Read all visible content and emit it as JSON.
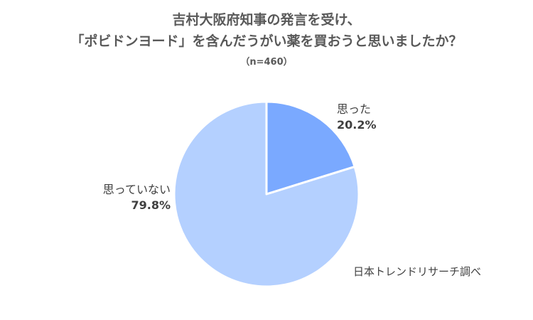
{
  "chart_data": {
    "type": "pie",
    "title_lines": [
      "吉村大阪府知事の発言を受け、",
      "「ポビドンヨード」を含んだうがい薬を買おうと思いましたか？"
    ],
    "subtitle": "（n=460）",
    "categories": [
      "思った",
      "思っていない"
    ],
    "values": [
      20.2,
      79.8
    ],
    "value_labels": [
      "20.2%",
      "79.8%"
    ],
    "colors": [
      "#7aa9ff",
      "#b4d0ff"
    ],
    "legend": "none",
    "source": "日本トレンドリサーチ調べ"
  }
}
